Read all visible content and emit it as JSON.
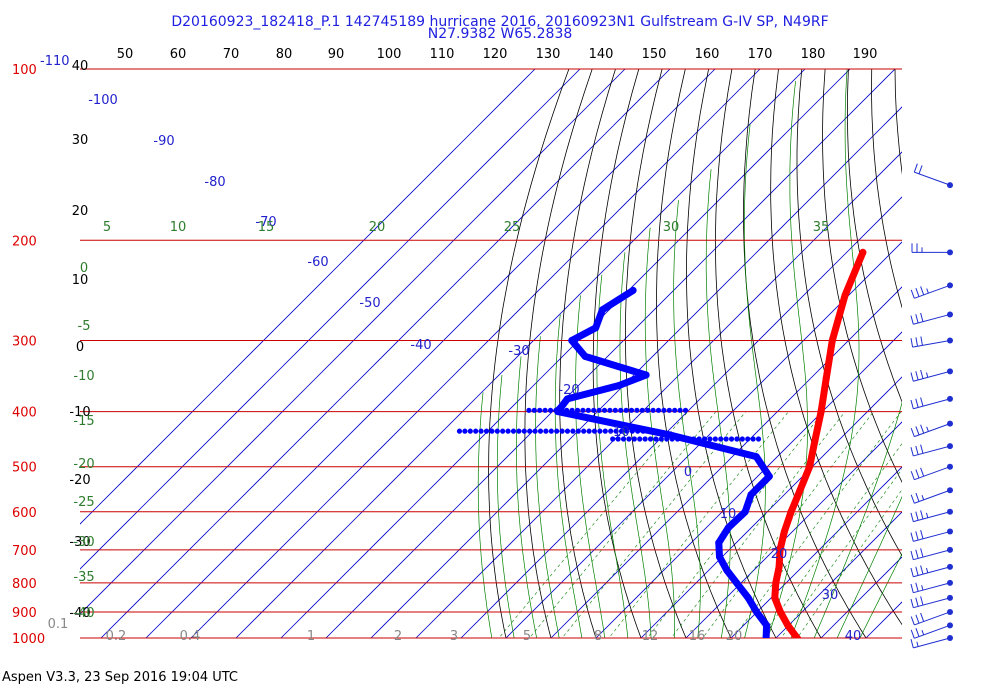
{
  "header": {
    "title_line1": "D20160923_182418_P.1 142745189 hurricane 2016, 20160923N1 Gulfstream G-IV SP, N49RF",
    "title_line2": "N27.9382 W65.2838"
  },
  "footer": {
    "text": "Aspen V3.3, 23 Sep 2016  19:04 UTC"
  },
  "chart_data": {
    "type": "line",
    "chart_kind": "skew-T log-P sounding",
    "colors": {
      "temperature": "#ff0000",
      "dewpoint": "#0000ff",
      "isobar": "#cc0000",
      "isotherm": "#0000cc",
      "dry_adiabat": "#000000",
      "moist_adiabat": "#008000",
      "mixing_ratio": "#008000",
      "pressure_label": "#dd0000",
      "isotherm_label": "#2222cc",
      "theta_label": "#2e7d2e",
      "mixing_label": "#888888",
      "title": "#2020e0"
    },
    "pressure_levels": [
      100,
      200,
      300,
      400,
      500,
      600,
      700,
      800,
      900,
      1000
    ],
    "pressure_labels": [
      "100",
      "200",
      "300",
      "400",
      "500",
      "600",
      "700",
      "800",
      "900",
      "1000"
    ],
    "top_axis_labels": [
      "-110",
      "40",
      "50",
      "60",
      "70",
      "80",
      "90",
      "100",
      "110",
      "120",
      "130",
      "140",
      "150",
      "160",
      "170",
      "180",
      "190"
    ],
    "left_axis_labels": [
      "30",
      "20",
      "10",
      "0",
      "-10",
      "-20",
      "-30",
      "-40"
    ],
    "isotherm_labels": [
      "-100",
      "-90",
      "-80",
      "-70",
      "-60",
      "-50",
      "-40",
      "-30",
      "-20",
      "-10",
      "0",
      "10",
      "20",
      "30",
      "40"
    ],
    "theta_labels": [
      "5",
      "10",
      "15",
      "20",
      "25",
      "30",
      "35"
    ],
    "theta_left_labels": [
      "0",
      "-5",
      "-10",
      "-15",
      "-20",
      "-25",
      "-30",
      "-35",
      "-40"
    ],
    "mixing_ratio_labels": [
      "0.1",
      "0.2",
      "0.4",
      "1",
      "2",
      "3",
      "5",
      "8",
      "12",
      "16",
      "20"
    ],
    "series": [
      {
        "name": "",
        "role": "temperature",
        "points": [
          [
            210,
            -46.4
          ],
          [
            250,
            -40.8
          ],
          [
            300,
            -33.6
          ],
          [
            350,
            -26.5
          ],
          [
            400,
            -20.3
          ],
          [
            450,
            -15.2
          ],
          [
            500,
            -10.6
          ],
          [
            550,
            -7.5
          ],
          [
            600,
            -4.7
          ],
          [
            650,
            -1.8
          ],
          [
            700,
            1.3
          ],
          [
            750,
            4.9
          ],
          [
            800,
            7.7
          ],
          [
            850,
            10.8
          ],
          [
            900,
            15.2
          ],
          [
            950,
            19.8
          ],
          [
            1000,
            24.7
          ],
          [
            1010,
            25.7
          ]
        ]
      },
      {
        "name": "",
        "role": "dewpoint",
        "points": [
          [
            245,
            -89.0
          ],
          [
            265,
            -91.5
          ],
          [
            285,
            -89.0
          ],
          [
            300,
            -91.5
          ],
          [
            320,
            -85.0
          ],
          [
            345,
            -67.3
          ],
          [
            360,
            -71.0
          ],
          [
            380,
            -79.5
          ],
          [
            400,
            -78.8
          ],
          [
            440,
            -48.5
          ],
          [
            480,
            -24.7
          ],
          [
            520,
            -17.4
          ],
          [
            560,
            -17.4
          ],
          [
            600,
            -14.9
          ],
          [
            640,
            -15.1
          ],
          [
            680,
            -13.9
          ],
          [
            720,
            -10.6
          ],
          [
            760,
            -6.0
          ],
          [
            800,
            -1.0
          ],
          [
            850,
            4.9
          ],
          [
            900,
            9.9
          ],
          [
            950,
            15.1
          ],
          [
            1000,
            17.8
          ]
        ]
      }
    ],
    "dewpoint_bursts": [
      [
        398,
        -85.5,
        -49.5
      ],
      [
        433,
        -96.3,
        -54.0
      ],
      [
        447,
        -60.5,
        -28.0
      ]
    ],
    "isolated_point": [
      185,
      -33.0
    ],
    "wind_barbs": [
      [
        160,
        290,
        20
      ],
      [
        210,
        270,
        25
      ],
      [
        240,
        250,
        35
      ],
      [
        270,
        255,
        30
      ],
      [
        300,
        260,
        30
      ],
      [
        340,
        255,
        35
      ],
      [
        380,
        255,
        30
      ],
      [
        420,
        250,
        35
      ],
      [
        460,
        255,
        30
      ],
      [
        500,
        250,
        30
      ],
      [
        550,
        250,
        25
      ],
      [
        600,
        255,
        35
      ],
      [
        650,
        255,
        30
      ],
      [
        700,
        255,
        30
      ],
      [
        750,
        255,
        35
      ],
      [
        800,
        255,
        25
      ],
      [
        850,
        255,
        30
      ],
      [
        900,
        250,
        30
      ],
      [
        950,
        250,
        25
      ],
      [
        1000,
        255,
        15
      ]
    ]
  }
}
